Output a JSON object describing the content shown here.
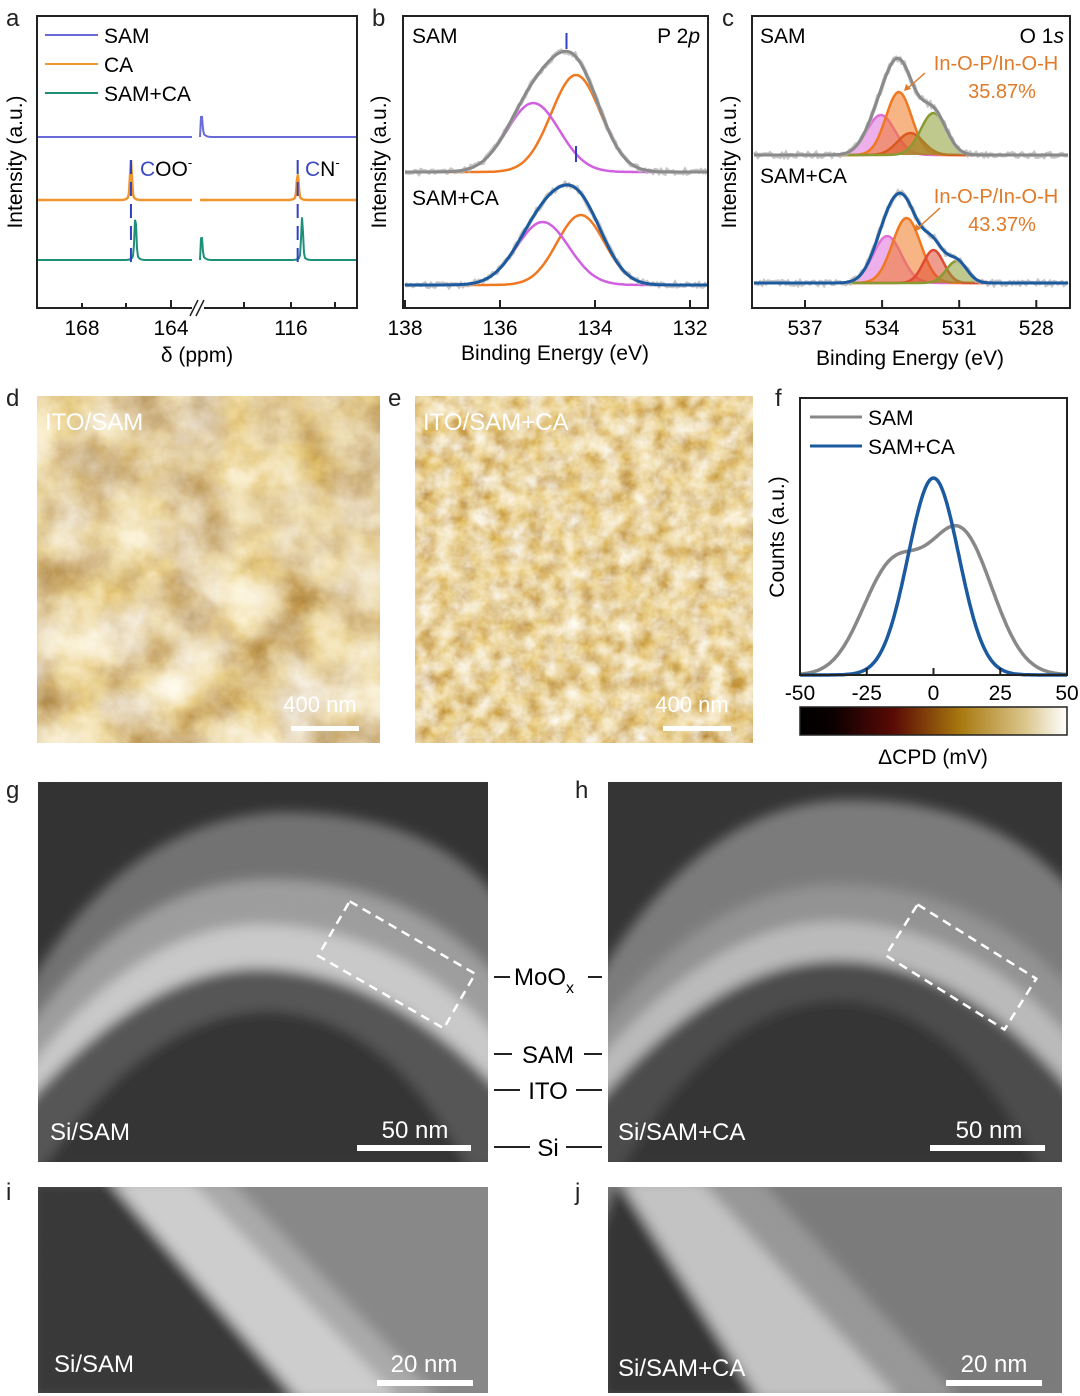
{
  "chart_data": [
    {
      "panel": "a",
      "type": "line",
      "xlabel": "δ (ppm)",
      "ylabel": "Intensity (a.u.)",
      "xticks_left": [
        "168",
        "164"
      ],
      "xticks_right": [
        "116"
      ],
      "axis_break": true,
      "legend": [
        "SAM",
        "CA",
        "SAM+CA"
      ],
      "legend_placement": "top-left",
      "annotations": [
        {
          "main": "C",
          "rest": "OO",
          "sup": "-"
        },
        {
          "main": "C",
          "rest": "N",
          "sup": "-"
        }
      ],
      "series": [
        {
          "name": "SAM",
          "color": "#6a6ad8",
          "peaks_ppm": [],
          "break_spike": true
        },
        {
          "name": "CA",
          "color": "#f0962e",
          "peaks_ppm": [
            165.8,
            115.7
          ]
        },
        {
          "name": "SAM+CA",
          "color": "#1e8f78",
          "peaks_ppm": [
            165.6,
            115.5
          ],
          "break_spike": true
        }
      ],
      "marker_ppm": [
        165.8,
        115.7
      ]
    },
    {
      "panel": "b",
      "type": "line",
      "title": "P 2",
      "title_italic": "p",
      "xlabel": "Binding Energy (eV)",
      "ylabel": "Intensity (a.u.)",
      "xlim": [
        138,
        131.4
      ],
      "xticks": [
        138,
        136,
        134,
        132
      ],
      "spectra": [
        {
          "name": "SAM",
          "envelope_color": "#8a8a8a",
          "marker_ev": 134.6,
          "components": [
            {
              "center": 134.4,
              "height": 0.97,
              "sigma": 0.52,
              "color": "#f07820"
            },
            {
              "center": 135.3,
              "height": 0.69,
              "sigma": 0.55,
              "color": "#d060e0"
            }
          ]
        },
        {
          "name": "SAM+CA",
          "envelope_color": "#1c5aa0",
          "marker_ev": 134.4,
          "components": [
            {
              "center": 134.3,
              "height": 0.7,
              "sigma": 0.5,
              "color": "#f07820"
            },
            {
              "center": 135.1,
              "height": 0.63,
              "sigma": 0.55,
              "color": "#d060e0"
            }
          ]
        }
      ]
    },
    {
      "panel": "c",
      "type": "line",
      "title": "O 1",
      "title_italic": "s",
      "xlabel": "Binding Energy (eV)",
      "ylabel": "Intensity (a.u.)",
      "xlim": [
        539.1,
        526.6
      ],
      "xticks": [
        537,
        534,
        531,
        528
      ],
      "spectra": [
        {
          "name": "SAM",
          "envelope_color": "#8a8a8a",
          "label": "In-O-P/In-O-H",
          "percent": "35.87%",
          "components": [
            {
              "center": 534.05,
              "height": 0.4,
              "sigma": 0.55,
              "color": "#e070d8"
            },
            {
              "center": 533.35,
              "height": 0.63,
              "sigma": 0.5,
              "color": "#f07820"
            },
            {
              "center": 532.9,
              "height": 0.22,
              "sigma": 0.5,
              "color": "#d85a20"
            },
            {
              "center": 532.0,
              "height": 0.42,
              "sigma": 0.5,
              "color": "#8a9a30"
            }
          ]
        },
        {
          "name": "SAM+CA",
          "envelope_color": "#1c5aa0",
          "label": "In-O-P/In-O-H",
          "percent": "43.37%",
          "components": [
            {
              "center": 533.8,
              "height": 0.47,
              "sigma": 0.55,
              "color": "#e070d8"
            },
            {
              "center": 533.05,
              "height": 0.65,
              "sigma": 0.55,
              "color": "#f07820"
            },
            {
              "center": 532.0,
              "height": 0.33,
              "sigma": 0.4,
              "color": "#e04a30"
            },
            {
              "center": 531.1,
              "height": 0.22,
              "sigma": 0.4,
              "color": "#8a9a30"
            }
          ]
        }
      ]
    },
    {
      "panel": "f",
      "type": "line",
      "xlabel": "ΔCPD (mV)",
      "ylabel": "Counts (a.u.)",
      "xlim": [
        -50,
        50
      ],
      "xticks": [
        -50,
        -25,
        0,
        25,
        50
      ],
      "legend": [
        "SAM",
        "SAM+CA"
      ],
      "legend_placement": "top-left",
      "colorbar": [
        "#000000",
        "#5a0a05",
        "#a8780e",
        "#d8c080",
        "#ffffff"
      ],
      "series": [
        {
          "name": "SAM",
          "color": "#888888",
          "components": [
            {
              "center": -16,
              "height": 0.52,
              "sigma": 11
            },
            {
              "center": 10,
              "height": 0.72,
              "sigma": 12
            }
          ]
        },
        {
          "name": "SAM+CA",
          "color": "#1c5aa0",
          "components": [
            {
              "center": 0,
              "height": 1.0,
              "sigma": 9.5
            }
          ]
        }
      ]
    }
  ],
  "panel_labels": [
    "a",
    "b",
    "c",
    "d",
    "e",
    "f",
    "g",
    "h",
    "i",
    "j"
  ],
  "images": {
    "d": {
      "label": "ITO/SAM",
      "scale": "400 nm"
    },
    "e": {
      "label": "ITO/SAM+CA",
      "scale": "400 nm"
    },
    "g": {
      "label": "Si/SAM",
      "scale": "50 nm"
    },
    "h": {
      "label": "Si/SAM+CA",
      "scale": "50 nm"
    },
    "i": {
      "label": "Si/SAM",
      "scale": "20 nm"
    },
    "j": {
      "label": "Si/SAM+CA",
      "scale": "20 nm"
    }
  },
  "layers": {
    "moox_main": "MoO",
    "moox_sub": "x",
    "sam": "SAM",
    "ito": "ITO",
    "si": "Si"
  }
}
